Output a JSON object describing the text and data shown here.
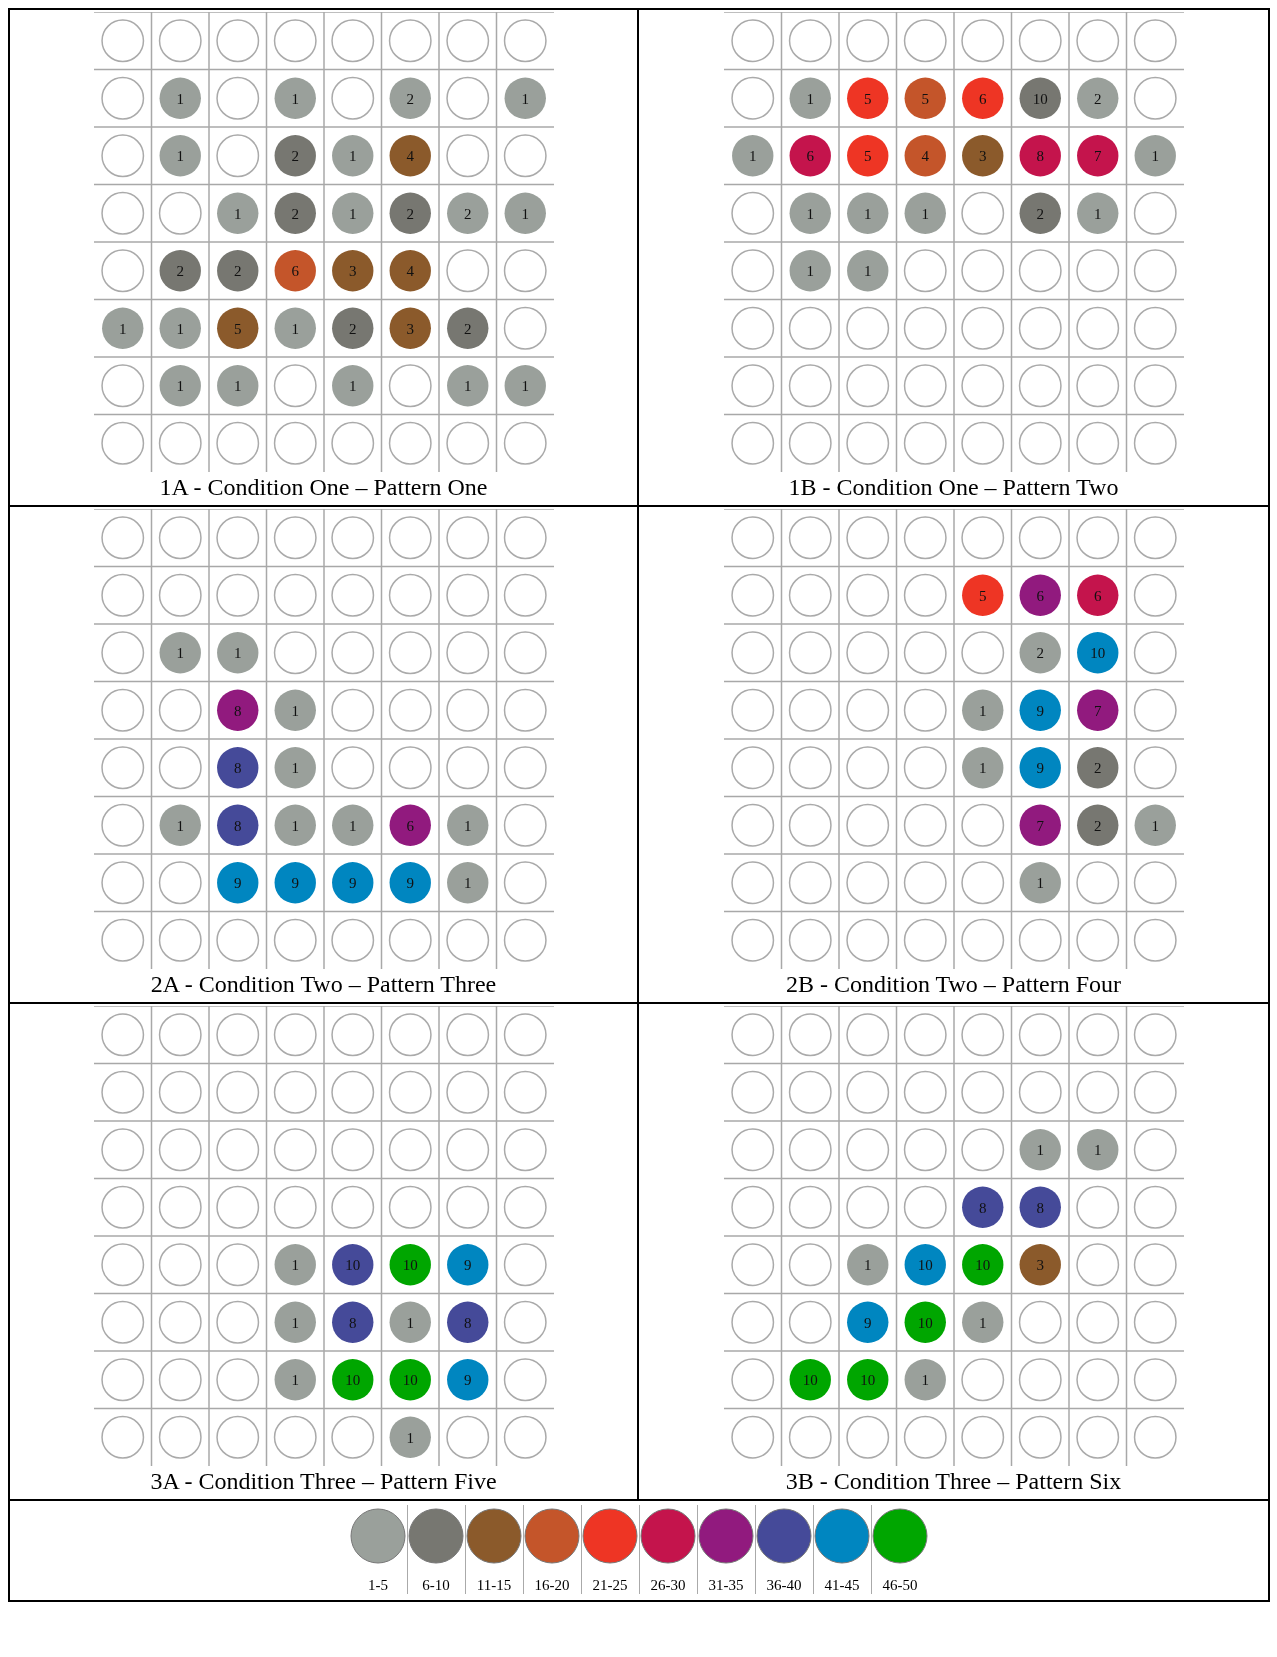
{
  "chart_data": [
    {
      "type": "other",
      "title": "1A - Condition One – Pattern One",
      "data_labels": true,
      "categories": [
        null,
        null,
        null,
        null,
        null,
        null,
        null,
        null,
        null,
        null,
        null,
        null,
        null,
        null,
        null,
        null,
        null,
        null,
        null,
        null,
        null,
        null,
        null,
        null,
        null,
        null,
        null,
        null,
        null,
        null,
        null,
        null,
        null,
        null,
        null,
        null,
        null,
        null,
        null,
        null,
        null,
        null,
        null,
        null,
        null,
        null,
        null,
        null,
        null,
        null,
        null,
        null,
        null,
        null,
        null,
        null,
        null,
        null,
        null,
        null,
        null,
        null,
        null,
        null
      ],
      "values": [
        null,
        null,
        null,
        null,
        null,
        null,
        null,
        null,
        null,
        1,
        null,
        1,
        null,
        2,
        null,
        1,
        null,
        1,
        null,
        2,
        1,
        4,
        null,
        null,
        null,
        null,
        1,
        2,
        1,
        2,
        2,
        1,
        null,
        2,
        2,
        6,
        3,
        4,
        null,
        null,
        1,
        1,
        5,
        1,
        2,
        3,
        2,
        null,
        null,
        1,
        1,
        null,
        1,
        null,
        1,
        1,
        null,
        null,
        null,
        null,
        null,
        null,
        null,
        null
      ],
      "colors": [
        null,
        null,
        null,
        null,
        null,
        null,
        null,
        null,
        null,
        "#9aa09b",
        null,
        "#9aa09b",
        null,
        "#9aa09b",
        null,
        "#9aa09b",
        null,
        "#9aa09b",
        null,
        "#777771",
        "#9aa09b",
        "#8b5a2b",
        null,
        null,
        null,
        null,
        "#9aa09b",
        "#777771",
        "#9aa09b",
        "#777771",
        "#9aa09b",
        "#9aa09b",
        null,
        "#777771",
        "#777771",
        "#c4552a",
        "#8b5a2b",
        "#8b5a2b",
        null,
        null,
        "#9aa09b",
        "#9aa09b",
        "#8b5a2b",
        "#9aa09b",
        "#777771",
        "#8b5a2b",
        "#777771",
        null,
        null,
        "#9aa09b",
        "#9aa09b",
        null,
        "#9aa09b",
        null,
        "#9aa09b",
        "#9aa09b",
        null,
        null,
        null,
        null,
        null,
        null,
        null,
        null
      ]
    },
    {
      "type": "other",
      "title": "1B - Condition One – Pattern Two",
      "data_labels": true,
      "categories": [
        null,
        null,
        null,
        null,
        null,
        null,
        null,
        null,
        null,
        null,
        null,
        null,
        null,
        null,
        null,
        null,
        null,
        null,
        null,
        null,
        null,
        null,
        null,
        null,
        null,
        null,
        null,
        null,
        null,
        null,
        null,
        null,
        null,
        null,
        null,
        null,
        null,
        null,
        null,
        null,
        null,
        null,
        null,
        null,
        null,
        null,
        null,
        null,
        null,
        null,
        null,
        null,
        null,
        null,
        null,
        null,
        null,
        null,
        null,
        null,
        null,
        null,
        null,
        null
      ],
      "values": [
        null,
        null,
        null,
        null,
        null,
        null,
        null,
        null,
        null,
        1,
        5,
        5,
        6,
        10,
        2,
        null,
        1,
        6,
        5,
        4,
        3,
        8,
        7,
        1,
        null,
        1,
        1,
        1,
        null,
        2,
        1,
        null,
        null,
        1,
        1,
        null,
        null,
        null,
        null,
        null,
        null,
        null,
        null,
        null,
        null,
        null,
        null,
        null,
        null,
        null,
        null,
        null,
        null,
        null,
        null,
        null,
        null,
        null,
        null,
        null,
        null,
        null,
        null,
        null
      ],
      "colors": [
        null,
        null,
        null,
        null,
        null,
        null,
        null,
        null,
        null,
        "#9aa09b",
        "#ee3524",
        "#c4552a",
        "#ee3524",
        "#777771",
        "#9aa09b",
        null,
        "#9aa09b",
        "#c4144c",
        "#ee3524",
        "#c4552a",
        "#8b5a2b",
        "#c4144c",
        "#c4144c",
        "#9aa09b",
        null,
        "#9aa09b",
        "#9aa09b",
        "#9aa09b",
        null,
        "#777771",
        "#9aa09b",
        null,
        null,
        "#9aa09b",
        "#9aa09b",
        null,
        null,
        null,
        null,
        null,
        null,
        null,
        null,
        null,
        null,
        null,
        null,
        null,
        null,
        null,
        null,
        null,
        null,
        null,
        null,
        null,
        null,
        null,
        null,
        null,
        null,
        null,
        null,
        null
      ]
    },
    {
      "type": "other",
      "title": "2A - Condition Two – Pattern Three",
      "data_labels": true,
      "categories": [
        null,
        null,
        null,
        null,
        null,
        null,
        null,
        null,
        null,
        null,
        null,
        null,
        null,
        null,
        null,
        null,
        null,
        null,
        null,
        null,
        null,
        null,
        null,
        null,
        null,
        null,
        null,
        null,
        null,
        null,
        null,
        null,
        null,
        null,
        null,
        null,
        null,
        null,
        null,
        null,
        null,
        null,
        null,
        null,
        null,
        null,
        null,
        null,
        null,
        null,
        null,
        null,
        null,
        null,
        null,
        null,
        null,
        null,
        null,
        null,
        null,
        null,
        null,
        null
      ],
      "values": [
        null,
        null,
        null,
        null,
        null,
        null,
        null,
        null,
        null,
        null,
        null,
        null,
        null,
        null,
        null,
        null,
        null,
        1,
        1,
        null,
        null,
        null,
        null,
        null,
        null,
        null,
        8,
        1,
        null,
        null,
        null,
        null,
        null,
        null,
        8,
        1,
        null,
        null,
        null,
        null,
        null,
        1,
        8,
        1,
        1,
        6,
        1,
        null,
        null,
        null,
        9,
        9,
        9,
        9,
        1,
        null,
        null,
        null,
        null,
        null,
        null,
        null,
        null,
        null
      ],
      "colors": [
        null,
        null,
        null,
        null,
        null,
        null,
        null,
        null,
        null,
        null,
        null,
        null,
        null,
        null,
        null,
        null,
        null,
        "#9aa09b",
        "#9aa09b",
        null,
        null,
        null,
        null,
        null,
        null,
        null,
        "#911a7e",
        "#9aa09b",
        null,
        null,
        null,
        null,
        null,
        null,
        "#454a99",
        "#9aa09b",
        null,
        null,
        null,
        null,
        null,
        "#9aa09b",
        "#454a99",
        "#9aa09b",
        "#9aa09b",
        "#911a7e",
        "#9aa09b",
        null,
        null,
        null,
        "#0086c0",
        "#0086c0",
        "#0086c0",
        "#0086c0",
        "#9aa09b",
        null,
        null,
        null,
        null,
        null,
        null,
        null,
        null,
        null
      ]
    },
    {
      "type": "other",
      "title": "2B - Condition Two – Pattern Four",
      "data_labels": true,
      "categories": [
        null,
        null,
        null,
        null,
        null,
        null,
        null,
        null,
        null,
        null,
        null,
        null,
        null,
        null,
        null,
        null,
        null,
        null,
        null,
        null,
        null,
        null,
        null,
        null,
        null,
        null,
        null,
        null,
        null,
        null,
        null,
        null,
        null,
        null,
        null,
        null,
        null,
        null,
        null,
        null,
        null,
        null,
        null,
        null,
        null,
        null,
        null,
        null,
        null,
        null,
        null,
        null,
        null,
        null,
        null,
        null,
        null,
        null,
        null,
        null,
        null,
        null,
        null,
        null
      ],
      "values": [
        null,
        null,
        null,
        null,
        null,
        null,
        null,
        null,
        null,
        null,
        null,
        null,
        5,
        6,
        6,
        null,
        null,
        null,
        null,
        null,
        null,
        2,
        10,
        null,
        null,
        null,
        null,
        null,
        1,
        9,
        7,
        null,
        null,
        null,
        null,
        null,
        1,
        9,
        2,
        null,
        null,
        null,
        null,
        null,
        null,
        7,
        2,
        1,
        null,
        null,
        null,
        null,
        null,
        1,
        null,
        null,
        null,
        null,
        null,
        null,
        null,
        null,
        null,
        null
      ],
      "colors": [
        null,
        null,
        null,
        null,
        null,
        null,
        null,
        null,
        null,
        null,
        null,
        null,
        "#ee3524",
        "#911a7e",
        "#c4144c",
        null,
        null,
        null,
        null,
        null,
        null,
        "#9aa09b",
        "#0086c0",
        null,
        null,
        null,
        null,
        null,
        "#9aa09b",
        "#0086c0",
        "#911a7e",
        null,
        null,
        null,
        null,
        null,
        "#9aa09b",
        "#0086c0",
        "#777771",
        null,
        null,
        null,
        null,
        null,
        null,
        "#911a7e",
        "#777771",
        "#9aa09b",
        null,
        null,
        null,
        null,
        null,
        "#9aa09b",
        null,
        null,
        null,
        null,
        null,
        null,
        null,
        null,
        null,
        null
      ]
    },
    {
      "type": "other",
      "title": "3A - Condition Three – Pattern Five",
      "data_labels": true,
      "categories": [
        null,
        null,
        null,
        null,
        null,
        null,
        null,
        null,
        null,
        null,
        null,
        null,
        null,
        null,
        null,
        null,
        null,
        null,
        null,
        null,
        null,
        null,
        null,
        null,
        null,
        null,
        null,
        null,
        null,
        null,
        null,
        null,
        null,
        null,
        null,
        null,
        null,
        null,
        null,
        null,
        null,
        null,
        null,
        null,
        null,
        null,
        null,
        null,
        null,
        null,
        null,
        null,
        null,
        null,
        null,
        null,
        null,
        null,
        null,
        null,
        null,
        null,
        null,
        null
      ],
      "values": [
        null,
        null,
        null,
        null,
        null,
        null,
        null,
        null,
        null,
        null,
        null,
        null,
        null,
        null,
        null,
        null,
        null,
        null,
        null,
        null,
        null,
        null,
        null,
        null,
        null,
        null,
        null,
        null,
        null,
        null,
        null,
        null,
        null,
        null,
        null,
        1,
        10,
        10,
        9,
        null,
        null,
        null,
        null,
        1,
        8,
        1,
        8,
        null,
        null,
        null,
        null,
        1,
        10,
        10,
        9,
        null,
        null,
        null,
        null,
        null,
        null,
        1,
        null,
        null
      ],
      "colors": [
        null,
        null,
        null,
        null,
        null,
        null,
        null,
        null,
        null,
        null,
        null,
        null,
        null,
        null,
        null,
        null,
        null,
        null,
        null,
        null,
        null,
        null,
        null,
        null,
        null,
        null,
        null,
        null,
        null,
        null,
        null,
        null,
        null,
        null,
        null,
        "#9aa09b",
        "#454a99",
        "#00a600",
        "#0086c0",
        null,
        null,
        null,
        null,
        "#9aa09b",
        "#454a99",
        "#9aa09b",
        "#454a99",
        null,
        null,
        null,
        null,
        "#9aa09b",
        "#00a600",
        "#00a600",
        "#0086c0",
        null,
        null,
        null,
        null,
        null,
        null,
        "#9aa09b",
        null,
        null
      ]
    },
    {
      "type": "other",
      "title": "3B - Condition Three – Pattern Six",
      "data_labels": true,
      "categories": [
        null,
        null,
        null,
        null,
        null,
        null,
        null,
        null,
        null,
        null,
        null,
        null,
        null,
        null,
        null,
        null,
        null,
        null,
        null,
        null,
        null,
        null,
        null,
        null,
        null,
        null,
        null,
        null,
        null,
        null,
        null,
        null,
        null,
        null,
        null,
        null,
        null,
        null,
        null,
        null,
        null,
        null,
        null,
        null,
        null,
        null,
        null,
        null,
        null,
        null,
        null,
        null,
        null,
        null,
        null,
        null,
        null,
        null,
        null,
        null,
        null,
        null,
        null,
        null
      ],
      "values": [
        null,
        null,
        null,
        null,
        null,
        null,
        null,
        null,
        null,
        null,
        null,
        null,
        null,
        null,
        null,
        null,
        null,
        null,
        null,
        null,
        null,
        1,
        1,
        null,
        null,
        null,
        null,
        null,
        8,
        8,
        null,
        null,
        null,
        null,
        1,
        10,
        10,
        3,
        null,
        null,
        null,
        null,
        9,
        10,
        1,
        null,
        null,
        null,
        null,
        10,
        10,
        1,
        null,
        null,
        null,
        null,
        null,
        null,
        null,
        null,
        null,
        null,
        null,
        null
      ],
      "colors": [
        null,
        null,
        null,
        null,
        null,
        null,
        null,
        null,
        null,
        null,
        null,
        null,
        null,
        null,
        null,
        null,
        null,
        null,
        null,
        null,
        null,
        "#9aa09b",
        "#9aa09b",
        null,
        null,
        null,
        null,
        null,
        "#454a99",
        "#454a99",
        null,
        null,
        null,
        null,
        "#9aa09b",
        "#0086c0",
        "#00a600",
        "#8b5a2b",
        null,
        null,
        null,
        null,
        "#0086c0",
        "#00a600",
        "#9aa09b",
        null,
        null,
        null,
        null,
        "#00a600",
        "#00a600",
        "#9aa09b",
        null,
        null,
        null,
        null,
        null,
        null,
        null,
        null,
        null,
        null,
        null,
        null
      ]
    },
    {
      "type": "other",
      "categories": [
        "1-5",
        "6-10",
        "11-15",
        "16-20",
        "21-25",
        "26-30",
        "31-35",
        "36-40",
        "41-45",
        "46-50"
      ],
      "colors": [
        "#9aa09b",
        "#777771",
        "#8b5a2b",
        "#c4552a",
        "#ee3524",
        "#c4144c",
        "#911a7e",
        "#454a99",
        "#0086c0",
        "#00a600"
      ]
    }
  ]
}
